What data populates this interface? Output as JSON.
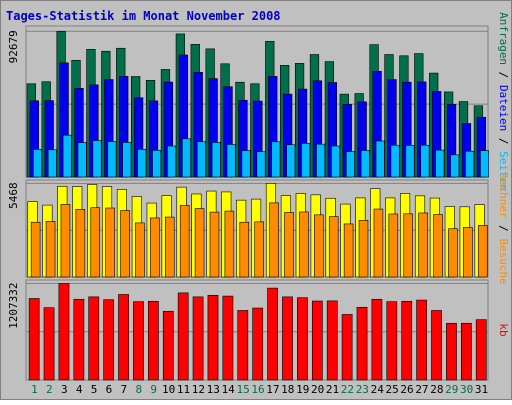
{
  "colors": {
    "frame_bg": "#c0c0c0",
    "frame_border": "#808080",
    "title": "#0000cc",
    "anfragen": "#006f4a",
    "dateien": "#0000ee",
    "seiten": "#00bbff",
    "besuche": "#ffff00",
    "rechner": "#ff8c00",
    "kb": "#ff0000",
    "weekday_label": "#000000",
    "weekend_label": "#007040",
    "bar_edge": "#000000"
  },
  "chart_data": {
    "type": "bar",
    "title": "Tages-Statistik im Monat November 2008",
    "x": [
      "1",
      "2",
      "3",
      "4",
      "5",
      "6",
      "7",
      "8",
      "9",
      "10",
      "11",
      "12",
      "13",
      "14",
      "15",
      "16",
      "17",
      "18",
      "19",
      "20",
      "21",
      "22",
      "23",
      "24",
      "25",
      "26",
      "27",
      "28",
      "29",
      "30",
      "31"
    ],
    "weekend_days": [
      "1",
      "2",
      "8",
      "9",
      "15",
      "16",
      "22",
      "23",
      "29",
      "30"
    ],
    "panels": [
      {
        "name": "hits",
        "ymax": 92679,
        "ytick": "92679",
        "right_labels": [
          {
            "text": "Anfragen",
            "color": "#006f4a"
          },
          {
            "text": " / ",
            "color": "#000000"
          },
          {
            "text": "Dateien",
            "color": "#0000ee"
          },
          {
            "text": " / ",
            "color": "#000000"
          },
          {
            "text": "Seiten",
            "color": "#00bbff"
          }
        ],
        "series": [
          {
            "name": "Anfragen",
            "values": [
              59300,
              60600,
              92679,
              74200,
              81200,
              80000,
              81900,
              63900,
              61500,
              68400,
              91000,
              84400,
              81500,
              72000,
              60300,
              59300,
              86300,
              71000,
              72300,
              77900,
              73400,
              52700,
              53100,
              84200,
              77900,
              77100,
              78500,
              66100,
              54100,
              48000,
              45300
            ]
          },
          {
            "name": "Dateien",
            "values": [
              48500,
              48600,
              72600,
              56400,
              58600,
              62000,
              64000,
              50400,
              48400,
              60400,
              77600,
              66600,
              62600,
              57400,
              48800,
              48300,
              64000,
              52700,
              55900,
              61200,
              60100,
              46200,
              47800,
              67200,
              62000,
              60300,
              60500,
              54400,
              46200,
              34000,
              38000
            ]
          },
          {
            "name": "Seiten",
            "values": [
              17600,
              17300,
              26600,
              21900,
              23200,
              22500,
              22000,
              17600,
              17000,
              19700,
              24300,
              22400,
              22000,
              20700,
              16800,
              16100,
              22400,
              20500,
              21400,
              20900,
              19700,
              16200,
              16900,
              22900,
              20200,
              20100,
              20200,
              17100,
              14100,
              16400,
              16800
            ]
          }
        ]
      },
      {
        "name": "visits",
        "ymax": 5468,
        "ytick": "5468",
        "right_labels": [
          {
            "text": "Rechner",
            "color": "#ff8c00"
          },
          {
            "text": " / ",
            "color": "#000000"
          },
          {
            "text": "Besuche",
            "color": "#ff8c00"
          }
        ],
        "series": [
          {
            "name": "Besuche",
            "values": [
              4400,
              4200,
              5300,
              5280,
              5400,
              5280,
              5120,
              4700,
              4320,
              4750,
              5250,
              4850,
              5020,
              4970,
              4490,
              4550,
              5468,
              4750,
              4880,
              4800,
              4600,
              4260,
              4620,
              5160,
              4620,
              4880,
              4740,
              4610,
              4120,
              4100,
              4230
            ]
          },
          {
            "name": "Rechner",
            "values": [
              3200,
              3250,
              4240,
              3950,
              4050,
              4030,
              3880,
              3160,
              3450,
              3500,
              4180,
              4000,
              3790,
              3850,
              3200,
              3220,
              4330,
              3770,
              3800,
              3630,
              3530,
              3100,
              3310,
              3970,
              3680,
              3690,
              3740,
              3650,
              2820,
              2900,
              3010
            ]
          }
        ]
      },
      {
        "name": "volume",
        "ymax": 1207332,
        "ytick": "1207332",
        "right_labels": [
          {
            "text": "kb",
            "color": "#ff0000"
          }
        ],
        "series": [
          {
            "name": "kb",
            "values": [
              1020000,
              905000,
              1207332,
              1010000,
              1040000,
              1005000,
              1070000,
              980000,
              985000,
              860000,
              1090000,
              1040000,
              1060000,
              1050000,
              870000,
              900000,
              1150000,
              1040000,
              1030000,
              988000,
              990000,
              820000,
              910000,
              1010000,
              980000,
              985000,
              1000000,
              870000,
              710000,
              710000,
              755000
            ]
          }
        ]
      }
    ]
  }
}
